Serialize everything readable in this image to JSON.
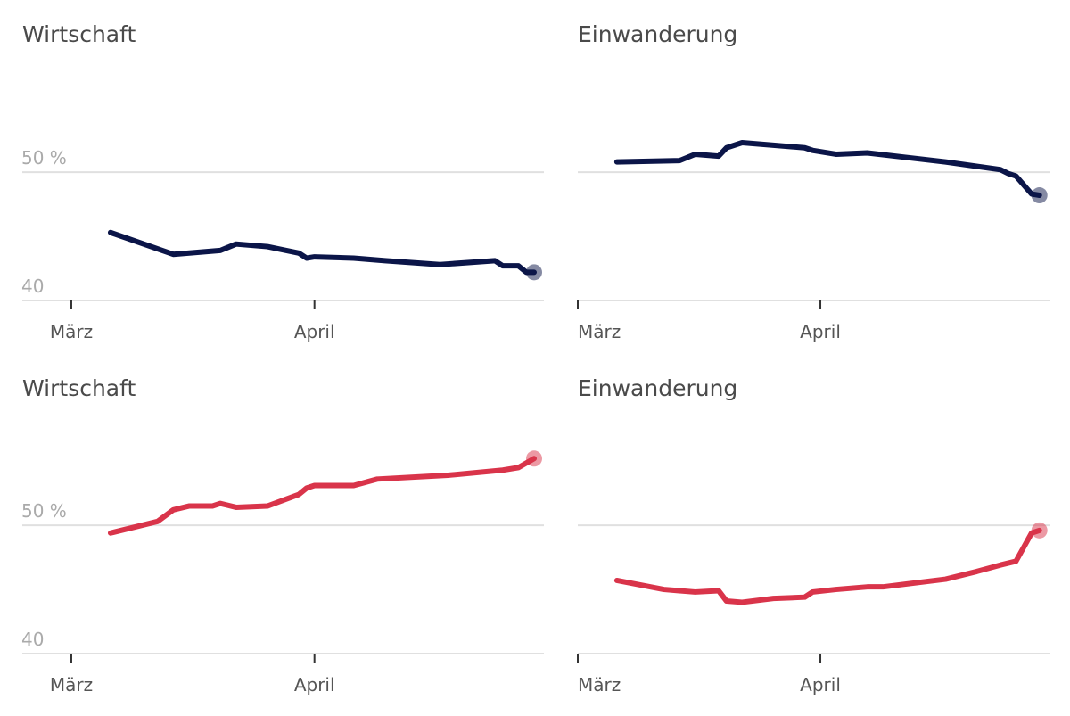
{
  "chart_data": [
    {
      "type": "line",
      "title": "Wirtschaft",
      "color": "#0b1548",
      "x": [
        5,
        13,
        19,
        21,
        25,
        29,
        30,
        31,
        36,
        40,
        47,
        54,
        55,
        57,
        58,
        59
      ],
      "values": [
        45.3,
        43.6,
        43.9,
        44.4,
        44.2,
        43.7,
        43.3,
        43.4,
        43.3,
        43.1,
        42.8,
        43.1,
        42.7,
        42.7,
        42.2,
        42.2
      ],
      "xlim": [
        -6.25,
        60.25
      ],
      "xticks": [
        {
          "value": 0,
          "label": "März"
        },
        {
          "value": 31,
          "label": "April"
        }
      ],
      "ylim": [
        40,
        58
      ],
      "yticks": [
        40,
        {
          "value": 50,
          "label": "50 %"
        }
      ],
      "grid": true,
      "ytick_labels": true
    },
    {
      "type": "line",
      "title": "Einwanderung",
      "color": "#0b1548",
      "x": [
        5,
        13,
        15,
        18,
        19,
        21,
        25,
        29,
        30,
        33,
        37,
        47,
        54,
        55,
        56,
        58,
        59
      ],
      "values": [
        50.8,
        50.9,
        51.4,
        51.25,
        51.9,
        52.3,
        52.1,
        51.9,
        51.7,
        51.4,
        51.5,
        50.8,
        50.2,
        49.9,
        49.7,
        48.3,
        48.2
      ],
      "xlim": [
        0,
        60.4
      ],
      "xticks": [
        {
          "value": 0,
          "label": "März"
        },
        {
          "value": 31,
          "label": "April"
        }
      ],
      "ylim": [
        40,
        58
      ],
      "yticks": [
        40,
        50
      ],
      "grid": true,
      "ytick_labels": false
    },
    {
      "type": "line",
      "title": "Wirtschaft",
      "color": "#d9344a",
      "x": [
        5,
        11,
        13,
        15,
        18,
        19,
        21,
        25,
        29,
        30,
        31,
        33,
        36,
        39,
        48,
        55,
        57,
        59
      ],
      "values": [
        49.4,
        50.3,
        51.2,
        51.5,
        51.5,
        51.7,
        51.4,
        51.5,
        52.4,
        52.9,
        53.1,
        53.1,
        53.1,
        53.6,
        53.9,
        54.3,
        54.5,
        55.2
      ],
      "xlim": [
        -6.25,
        60.25
      ],
      "xticks": [
        {
          "value": 0,
          "label": "März"
        },
        {
          "value": 31,
          "label": "April"
        }
      ],
      "ylim": [
        40,
        58
      ],
      "yticks": [
        40,
        {
          "value": 50,
          "label": "50 %"
        }
      ],
      "grid": true,
      "ytick_labels": true
    },
    {
      "type": "line",
      "title": "Einwanderung",
      "color": "#d9344a",
      "x": [
        5,
        11,
        15,
        18,
        19,
        21,
        25,
        29,
        30,
        33,
        37,
        39,
        47,
        51,
        54,
        56,
        58,
        59
      ],
      "values": [
        45.7,
        45.0,
        44.8,
        44.9,
        44.1,
        44.0,
        44.3,
        44.4,
        44.8,
        45.0,
        45.2,
        45.2,
        45.8,
        46.4,
        46.9,
        47.2,
        49.4,
        49.6
      ],
      "xlim": [
        0,
        60.4
      ],
      "xticks": [
        {
          "value": 0,
          "label": "März"
        },
        {
          "value": 31,
          "label": "April"
        }
      ],
      "ylim": [
        40,
        58
      ],
      "yticks": [
        40,
        50
      ],
      "grid": true,
      "ytick_labels": false
    }
  ]
}
